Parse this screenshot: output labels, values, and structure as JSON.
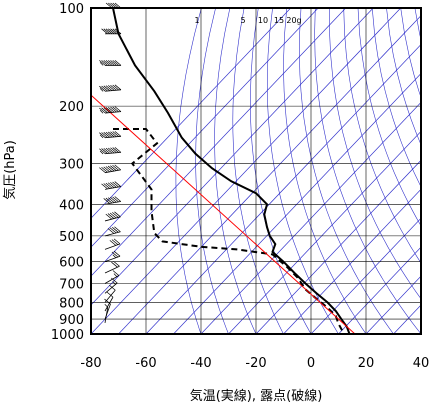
{
  "chart_data": {
    "type": "line",
    "title": "",
    "xlabel": "気温(実線), 露点(破線)",
    "ylabel": "気圧(hPa)",
    "xlim": [
      -80,
      40
    ],
    "ylim": [
      1000,
      100
    ],
    "y_scale": "log",
    "x_ticks": [
      -80,
      -60,
      -40,
      -20,
      0,
      20,
      40
    ],
    "y_ticks": [
      100,
      200,
      300,
      400,
      500,
      600,
      700,
      800,
      900,
      1000
    ],
    "x_tick_labels": [
      "-80",
      "-60",
      "-40",
      "-20",
      "0",
      "20",
      "40"
    ],
    "y_tick_labels": [
      "100",
      "200",
      "300",
      "400",
      "500",
      "600",
      "700",
      "800",
      "900",
      "1000"
    ],
    "mixing_ratio_labels": [
      "1",
      "5",
      "10",
      "15",
      "20g"
    ],
    "grid": true,
    "colors": {
      "temperature": "#000000",
      "dewpoint": "#000000",
      "reference": "#ff0000",
      "isotherm": "#3333cc",
      "grid": "#000000",
      "wind": "#000000"
    },
    "series": [
      {
        "name": "",
        "style": "solid",
        "points": [
          [
            -72,
            100
          ],
          [
            -70,
            120
          ],
          [
            -64,
            150
          ],
          [
            -57,
            180
          ],
          [
            -52,
            210
          ],
          [
            -47,
            250
          ],
          [
            -42,
            280
          ],
          [
            -36,
            310
          ],
          [
            -29,
            340
          ],
          [
            -20,
            370
          ],
          [
            -16,
            400
          ],
          [
            -17,
            430
          ],
          [
            -16,
            470
          ],
          [
            -15,
            500
          ],
          [
            -13,
            530
          ],
          [
            -14,
            560
          ],
          [
            -10,
            600
          ],
          [
            -6,
            650
          ],
          [
            -2,
            700
          ],
          [
            2,
            750
          ],
          [
            6,
            800
          ],
          [
            9,
            850
          ],
          [
            11,
            900
          ],
          [
            13,
            950
          ],
          [
            14,
            1000
          ]
        ]
      },
      {
        "name": "",
        "style": "dashed",
        "points": [
          [
            -72,
            235
          ],
          [
            -60,
            235
          ],
          [
            -56,
            260
          ],
          [
            -65,
            300
          ],
          [
            -58,
            360
          ],
          [
            -58,
            420
          ],
          [
            -57,
            490
          ],
          [
            -54,
            520
          ],
          [
            -40,
            540
          ],
          [
            -27,
            550
          ],
          [
            -14,
            570
          ],
          [
            -9,
            620
          ],
          [
            -5,
            670
          ],
          [
            -2,
            730
          ],
          [
            2,
            780
          ],
          [
            6,
            830
          ],
          [
            9,
            880
          ],
          [
            10,
            930
          ],
          [
            12,
            1000
          ]
        ]
      },
      {
        "name": "",
        "style": "solid-red",
        "points": [
          [
            -80,
            185
          ],
          [
            16,
            1000
          ]
        ]
      }
    ],
    "wind_barbs": [
      {
        "p": 100,
        "dir": 270,
        "speed": 50
      },
      {
        "p": 120,
        "dir": 270,
        "speed": 70
      },
      {
        "p": 150,
        "dir": 270,
        "speed": 90
      },
      {
        "p": 180,
        "dir": 265,
        "speed": 100
      },
      {
        "p": 210,
        "dir": 265,
        "speed": 110
      },
      {
        "p": 250,
        "dir": 265,
        "speed": 100
      },
      {
        "p": 280,
        "dir": 265,
        "speed": 90
      },
      {
        "p": 320,
        "dir": 260,
        "speed": 80
      },
      {
        "p": 360,
        "dir": 260,
        "speed": 70
      },
      {
        "p": 400,
        "dir": 260,
        "speed": 60
      },
      {
        "p": 450,
        "dir": 255,
        "speed": 50
      },
      {
        "p": 500,
        "dir": 255,
        "speed": 40
      },
      {
        "p": 550,
        "dir": 250,
        "speed": 30
      },
      {
        "p": 600,
        "dir": 250,
        "speed": 25
      },
      {
        "p": 650,
        "dir": 245,
        "speed": 20
      },
      {
        "p": 700,
        "dir": 240,
        "speed": 15
      },
      {
        "p": 750,
        "dir": 230,
        "speed": 15
      },
      {
        "p": 800,
        "dir": 220,
        "speed": 10
      },
      {
        "p": 850,
        "dir": 210,
        "speed": 10
      },
      {
        "p": 900,
        "dir": 200,
        "speed": 10
      },
      {
        "p": 925,
        "dir": 190,
        "speed": 5
      }
    ]
  }
}
